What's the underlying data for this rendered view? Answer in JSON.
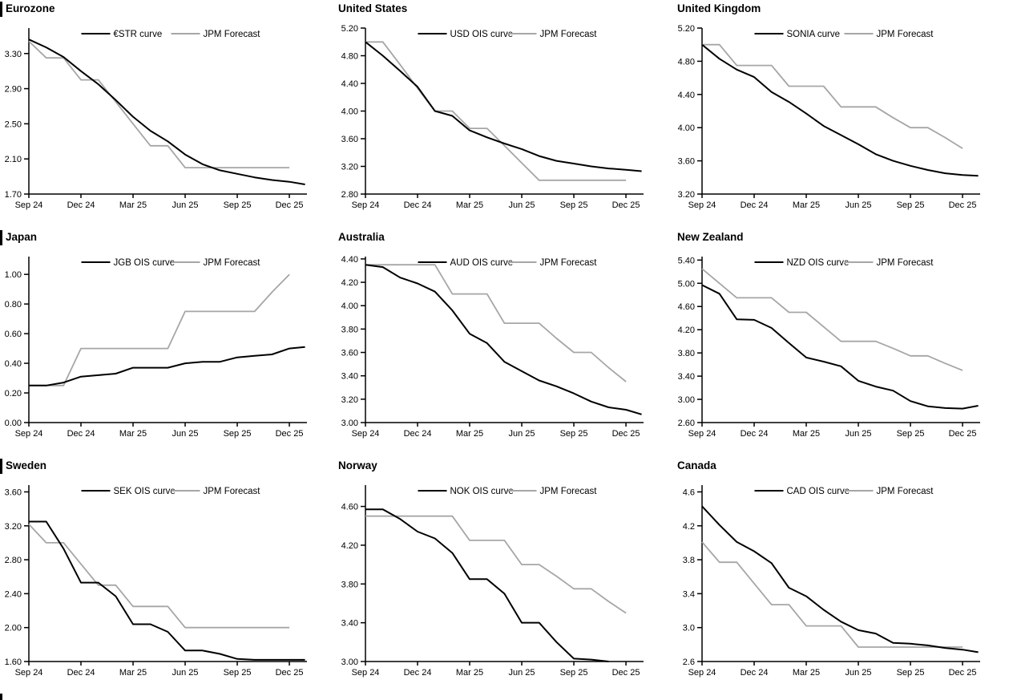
{
  "page": {
    "background": "#ffffff"
  },
  "colors": {
    "ois_curve": "#000000",
    "forecast": "#a6a6a6",
    "axis": "#000000",
    "text": "#000000"
  },
  "x_tick_labels": [
    "Sep 24",
    "Dec 24",
    "Mar 25",
    "Jun 25",
    "Sep 25",
    "Dec 25"
  ],
  "x_months_monthly": [
    "Sep 24",
    "Oct 24",
    "Nov 24",
    "Dec 24",
    "Jan 25",
    "Feb 25",
    "Mar 25",
    "Apr 25",
    "May 25",
    "Jun 25",
    "Jul 25",
    "Aug 25",
    "Sep 25",
    "Oct 25",
    "Nov 25",
    "Dec 25",
    "Jan 26"
  ],
  "chart_data": [
    {
      "type": "line",
      "title": "Eurozone",
      "section_bar": true,
      "ylim": [
        1.7,
        3.59
      ],
      "y_ticks": [
        1.7,
        2.1,
        2.5,
        2.9,
        3.3
      ],
      "y_tick_labels": [
        "1.70",
        "2.10",
        "2.50",
        "2.90",
        "3.30"
      ],
      "x_tick_months": [
        0,
        3,
        6,
        9,
        12,
        15
      ],
      "x_tick_labels": [
        "Sep 24",
        "Dec 24",
        "Mar 25",
        "Jun 25",
        "Sep 25",
        "Dec 25"
      ],
      "legend_position": "top-center",
      "grid": false,
      "series": [
        {
          "name": "€STR curve",
          "role": "ois",
          "values": [
            3.46,
            3.37,
            3.26,
            3.1,
            2.95,
            2.77,
            2.58,
            2.42,
            2.3,
            2.15,
            2.04,
            1.97,
            1.93,
            1.89,
            1.86,
            1.84,
            1.81
          ]
        },
        {
          "name": "JPM Forecast",
          "role": "forecast",
          "values": [
            3.44,
            3.25,
            3.25,
            3.0,
            3.0,
            2.75,
            2.5,
            2.25,
            2.25,
            2.0,
            2.0,
            2.0,
            2.0,
            2.0,
            2.0,
            2.0
          ]
        }
      ]
    },
    {
      "type": "line",
      "title": "United States",
      "section_bar": false,
      "ylim": [
        2.8,
        5.2
      ],
      "y_ticks": [
        2.8,
        3.2,
        3.6,
        4.0,
        4.4,
        4.8,
        5.2
      ],
      "y_tick_labels": [
        "2.80",
        "3.20",
        "3.60",
        "4.00",
        "4.40",
        "4.80",
        "5.20"
      ],
      "x_tick_months": [
        0,
        3,
        6,
        9,
        12,
        15
      ],
      "x_tick_labels": [
        "Sep 24",
        "Dec 24",
        "Mar 25",
        "Jun 25",
        "Sep 25",
        "Dec 25"
      ],
      "legend_position": "top-center",
      "grid": false,
      "series": [
        {
          "name": "USD OIS curve",
          "role": "ois",
          "values": [
            5.0,
            4.8,
            4.58,
            4.35,
            4.0,
            3.93,
            3.72,
            3.62,
            3.53,
            3.45,
            3.35,
            3.28,
            3.24,
            3.2,
            3.17,
            3.15,
            3.13
          ]
        },
        {
          "name": "JPM Forecast",
          "role": "forecast",
          "values": [
            5.0,
            5.0,
            4.67,
            4.33,
            4.0,
            4.0,
            3.75,
            3.75,
            3.5,
            3.25,
            3.0,
            3.0,
            3.0,
            3.0,
            3.0,
            3.0
          ]
        }
      ]
    },
    {
      "type": "line",
      "title": "United Kingdom",
      "section_bar": false,
      "ylim": [
        3.2,
        5.2
      ],
      "y_ticks": [
        3.2,
        3.6,
        4.0,
        4.4,
        4.8,
        5.2
      ],
      "y_tick_labels": [
        "3.20",
        "3.60",
        "4.00",
        "4.40",
        "4.80",
        "5.20"
      ],
      "x_tick_months": [
        0,
        3,
        6,
        9,
        12,
        15
      ],
      "x_tick_labels": [
        "Sep 24",
        "Dec 24",
        "Mar 25",
        "Jun 25",
        "Sep 25",
        "Dec 25"
      ],
      "legend_position": "top-center",
      "grid": false,
      "series": [
        {
          "name": "SONIA curve",
          "role": "ois",
          "values": [
            5.0,
            4.83,
            4.7,
            4.61,
            4.43,
            4.31,
            4.17,
            4.02,
            3.91,
            3.8,
            3.68,
            3.6,
            3.54,
            3.49,
            3.45,
            3.43,
            3.42
          ]
        },
        {
          "name": "JPM Forecast",
          "role": "forecast",
          "values": [
            5.0,
            5.0,
            4.75,
            4.75,
            4.75,
            4.5,
            4.5,
            4.5,
            4.25,
            4.25,
            4.25,
            4.12,
            4.0,
            4.0,
            3.88,
            3.75
          ]
        }
      ]
    },
    {
      "type": "line",
      "title": "Japan",
      "section_bar": true,
      "ylim": [
        0.0,
        1.12
      ],
      "y_ticks": [
        0.0,
        0.2,
        0.4,
        0.6,
        0.8,
        1.0
      ],
      "y_tick_labels": [
        "0.00",
        "0.20",
        "0.40",
        "0.60",
        "0.80",
        "1.00"
      ],
      "x_tick_months": [
        0,
        3,
        6,
        9,
        12,
        15
      ],
      "x_tick_labels": [
        "Sep 24",
        "Dec 24",
        "Mar 25",
        "Jun 25",
        "Sep 25",
        "Dec 25"
      ],
      "legend_position": "top-center",
      "grid": false,
      "series": [
        {
          "name": "JGB OIS curve",
          "role": "ois",
          "values": [
            0.25,
            0.25,
            0.27,
            0.31,
            0.32,
            0.33,
            0.37,
            0.37,
            0.37,
            0.4,
            0.41,
            0.41,
            0.44,
            0.45,
            0.46,
            0.5,
            0.51
          ]
        },
        {
          "name": "JPM Forecast",
          "role": "forecast",
          "values": [
            0.25,
            0.25,
            0.25,
            0.5,
            0.5,
            0.5,
            0.5,
            0.5,
            0.5,
            0.75,
            0.75,
            0.75,
            0.75,
            0.75,
            0.88,
            1.0
          ]
        }
      ]
    },
    {
      "type": "line",
      "title": "Australia",
      "section_bar": false,
      "ylim": [
        3.0,
        4.42
      ],
      "y_ticks": [
        3.0,
        3.2,
        3.4,
        3.6,
        3.8,
        4.0,
        4.2,
        4.4
      ],
      "y_tick_labels": [
        "3.00",
        "3.20",
        "3.40",
        "3.60",
        "3.80",
        "4.00",
        "4.20",
        "4.40"
      ],
      "x_tick_months": [
        0,
        3,
        6,
        9,
        12,
        15
      ],
      "x_tick_labels": [
        "Sep 24",
        "Dec 24",
        "Mar 25",
        "Jun 25",
        "Sep 25",
        "Dec 25"
      ],
      "legend_position": "top-center",
      "grid": false,
      "series": [
        {
          "name": "AUD OIS curve",
          "role": "ois",
          "values": [
            4.35,
            4.33,
            4.24,
            4.19,
            4.12,
            3.96,
            3.76,
            3.68,
            3.52,
            3.44,
            3.36,
            3.31,
            3.25,
            3.18,
            3.13,
            3.11,
            3.07
          ]
        },
        {
          "name": "JPM Forecast",
          "role": "forecast",
          "values": [
            4.35,
            4.35,
            4.35,
            4.35,
            4.35,
            4.1,
            4.1,
            4.1,
            3.85,
            3.85,
            3.85,
            3.72,
            3.6,
            3.6,
            3.47,
            3.35
          ]
        }
      ]
    },
    {
      "type": "line",
      "title": "New Zealand",
      "section_bar": false,
      "ylim": [
        2.6,
        5.46
      ],
      "y_ticks": [
        2.6,
        3.0,
        3.4,
        3.8,
        4.2,
        4.6,
        5.0,
        5.4
      ],
      "y_tick_labels": [
        "2.60",
        "3.00",
        "3.40",
        "3.80",
        "4.20",
        "4.60",
        "5.00",
        "5.40"
      ],
      "x_tick_months": [
        0,
        3,
        6,
        9,
        12,
        15
      ],
      "x_tick_labels": [
        "Sep 24",
        "Dec 24",
        "Mar 25",
        "Jun 25",
        "Sep 25",
        "Dec 25"
      ],
      "legend_position": "top-center",
      "grid": false,
      "series": [
        {
          "name": "NZD OIS curve",
          "role": "ois",
          "values": [
            4.97,
            4.82,
            4.38,
            4.37,
            4.23,
            3.97,
            3.72,
            3.65,
            3.57,
            3.32,
            3.22,
            3.15,
            2.97,
            2.88,
            2.85,
            2.84,
            2.89
          ]
        },
        {
          "name": "JPM Forecast",
          "role": "forecast",
          "values": [
            5.25,
            5.0,
            4.75,
            4.75,
            4.75,
            4.5,
            4.5,
            4.25,
            4.0,
            4.0,
            4.0,
            3.88,
            3.75,
            3.75,
            3.62,
            3.5
          ]
        }
      ]
    },
    {
      "type": "line",
      "title": "Sweden",
      "section_bar": true,
      "ylim": [
        1.6,
        3.68
      ],
      "y_ticks": [
        1.6,
        2.0,
        2.4,
        2.8,
        3.2,
        3.6
      ],
      "y_tick_labels": [
        "1.60",
        "2.00",
        "2.40",
        "2.80",
        "3.20",
        "3.60"
      ],
      "x_tick_months": [
        0,
        3,
        6,
        9,
        12,
        15
      ],
      "x_tick_labels": [
        "Sep 24",
        "Dec 24",
        "Mar 25",
        "Jun 25",
        "Sep 25",
        "Dec 25"
      ],
      "legend_position": "top-center",
      "grid": false,
      "series": [
        {
          "name": "SEK OIS curve",
          "role": "ois",
          "values": [
            3.25,
            3.25,
            2.93,
            2.53,
            2.53,
            2.37,
            2.04,
            2.04,
            1.95,
            1.73,
            1.73,
            1.69,
            1.63,
            1.62,
            1.62,
            1.62,
            1.62
          ]
        },
        {
          "name": "JPM Forecast",
          "role": "forecast",
          "values": [
            3.22,
            3.0,
            3.0,
            2.75,
            2.5,
            2.5,
            2.25,
            2.25,
            2.25,
            2.0,
            2.0,
            2.0,
            2.0,
            2.0,
            2.0,
            2.0
          ]
        }
      ]
    },
    {
      "type": "line",
      "title": "Norway",
      "section_bar": false,
      "ylim": [
        3.0,
        4.82
      ],
      "y_ticks": [
        3.0,
        3.4,
        3.8,
        4.2,
        4.6
      ],
      "y_tick_labels": [
        "3.00",
        "3.40",
        "3.80",
        "4.20",
        "4.60"
      ],
      "x_tick_months": [
        0,
        3,
        6,
        9,
        12,
        15
      ],
      "x_tick_labels": [
        "Sep 24",
        "Dec 24",
        "Mar 25",
        "Jun 25",
        "Sep 25",
        "Dec 25"
      ],
      "legend_position": "top-center",
      "grid": false,
      "series": [
        {
          "name": "NOK OIS curve",
          "role": "ois",
          "values": [
            4.57,
            4.57,
            4.47,
            4.34,
            4.27,
            4.12,
            3.85,
            3.85,
            3.7,
            3.4,
            3.4,
            3.2,
            3.03,
            3.02,
            3.0
          ]
        },
        {
          "name": "JPM Forecast",
          "role": "forecast",
          "values": [
            4.5,
            4.5,
            4.5,
            4.5,
            4.5,
            4.5,
            4.25,
            4.25,
            4.25,
            4.0,
            4.0,
            3.88,
            3.75,
            3.75,
            3.62,
            3.5
          ]
        }
      ]
    },
    {
      "type": "line",
      "title": "Canada",
      "section_bar": false,
      "ylim": [
        2.6,
        4.68
      ],
      "y_ticks": [
        2.6,
        3.0,
        3.4,
        3.8,
        4.2,
        4.6
      ],
      "y_tick_labels": [
        "2.6",
        "3.0",
        "3.4",
        "3.8",
        "4.2",
        "4.6"
      ],
      "x_tick_months": [
        0,
        3,
        6,
        9,
        12,
        15
      ],
      "x_tick_labels": [
        "Sep 24",
        "Dec 24",
        "Mar 25",
        "Jun 25",
        "Sep 25",
        "Dec 25"
      ],
      "legend_position": "top-center",
      "grid": false,
      "series": [
        {
          "name": "CAD OIS curve",
          "role": "ois",
          "values": [
            4.43,
            4.21,
            4.01,
            3.9,
            3.76,
            3.47,
            3.37,
            3.21,
            3.07,
            2.97,
            2.93,
            2.82,
            2.81,
            2.79,
            2.76,
            2.74,
            2.71
          ]
        },
        {
          "name": "JPM Forecast",
          "role": "forecast",
          "values": [
            4.01,
            3.77,
            3.77,
            3.52,
            3.27,
            3.27,
            3.02,
            3.02,
            3.02,
            2.77,
            2.77,
            2.77,
            2.77,
            2.77,
            2.77,
            2.77
          ]
        }
      ]
    }
  ]
}
